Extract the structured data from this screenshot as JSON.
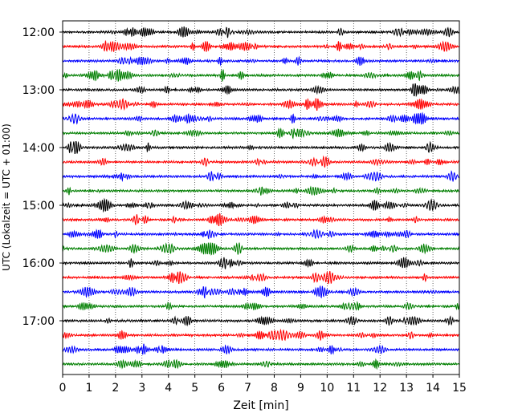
{
  "chart_data": {
    "type": "line",
    "title": "",
    "xlabel": "Zeit  [min]",
    "ylabel": "UTC (Lokalzeit = UTC + 01:00)",
    "xlim": [
      0,
      15
    ],
    "x_ticks": [
      "0",
      "1",
      "2",
      "3",
      "4",
      "5",
      "6",
      "7",
      "8",
      "9",
      "10",
      "11",
      "12",
      "13",
      "14",
      "15"
    ],
    "y_tick_labels": [
      "12:00",
      "13:00",
      "14:00",
      "15:00",
      "16:00",
      "17:00"
    ],
    "trace_start": "12:00",
    "trace_end": "17:45",
    "trace_interval_minutes": 15,
    "trace_count": 24,
    "trace_colors": [
      "#000000",
      "#ff0000",
      "#0000ff",
      "#007f00"
    ],
    "grid": "vertical-dotted"
  }
}
